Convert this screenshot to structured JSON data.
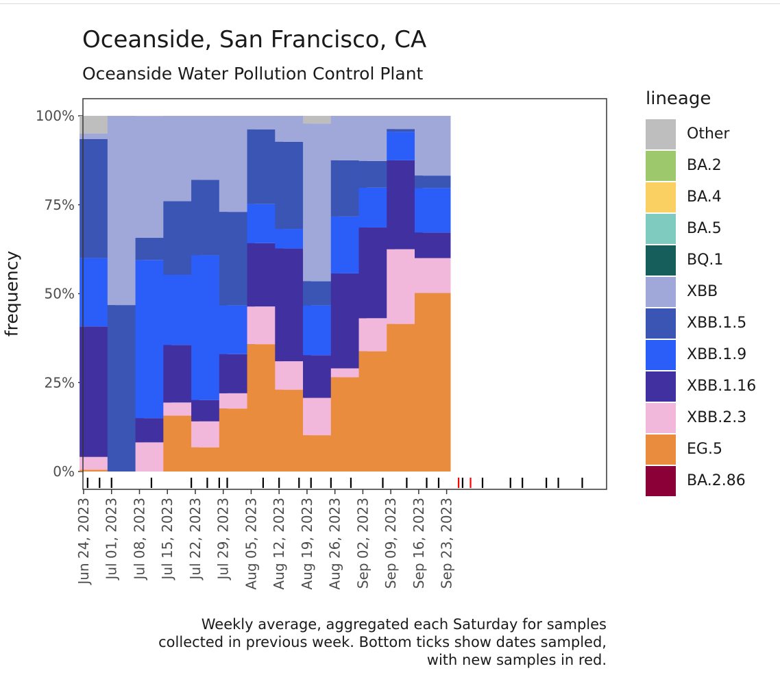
{
  "chart_data": {
    "type": "bar",
    "stacked": true,
    "title": "Oceanside, San Francisco, CA",
    "subtitle": "Oceanside Water Pollution Control Plant",
    "xlabel": "",
    "ylabel": "frequency",
    "ylim": [
      0,
      1
    ],
    "yticks": [
      "0%",
      "25%",
      "50%",
      "75%",
      "100%"
    ],
    "xticks": [
      "Jun 24, 2023",
      "Jul 01, 2023",
      "Jul 08, 2023",
      "Jul 15, 2023",
      "Jul 22, 2023",
      "Jul 29, 2023",
      "Aug 05, 2023",
      "Aug 12, 2023",
      "Aug 19, 2023",
      "Aug 26, 2023",
      "Sep 02, 2023",
      "Sep 09, 2023",
      "Sep 16, 2023",
      "Sep 23, 2023"
    ],
    "categories": [
      "Jul 01, 2023",
      "Jul 08, 2023",
      "Jul 15, 2023",
      "Jul 22, 2023",
      "Jul 29, 2023",
      "Aug 05, 2023",
      "Aug 12, 2023",
      "Aug 19, 2023",
      "Aug 26, 2023",
      "Sep 02, 2023",
      "Sep 09, 2023",
      "Sep 16, 2023",
      "Sep 23, 2023"
    ],
    "legend_title": "lineage",
    "legend_position": "right",
    "series": [
      {
        "name": "BA.2.86",
        "color": "#8B0037",
        "values": [
          0,
          0,
          0,
          0,
          0,
          0,
          0,
          0,
          0,
          0,
          0,
          0,
          0
        ]
      },
      {
        "name": "EG.5",
        "color": "#EA8C3D",
        "values": [
          0.005,
          0,
          0,
          0.157,
          0.068,
          0.177,
          0.358,
          0.23,
          0.102,
          0.265,
          0.338,
          0.415,
          0.502
        ]
      },
      {
        "name": "XBB.2.3",
        "color": "#F2B8DC",
        "values": [
          0.036,
          0,
          0.082,
          0.037,
          0.073,
          0.043,
          0.106,
          0.08,
          0.105,
          0.025,
          0.093,
          0.21,
          0.098
        ]
      },
      {
        "name": "XBB.1.16",
        "color": "#4030A0",
        "values": [
          0.367,
          0,
          0.068,
          0.162,
          0.06,
          0.11,
          0.178,
          0.317,
          0.12,
          0.267,
          0.255,
          0.25,
          0.072
        ]
      },
      {
        "name": "XBB.1.9",
        "color": "#2B5EF8",
        "values": [
          0.192,
          0,
          0.445,
          0.197,
          0.407,
          0.137,
          0.11,
          0.055,
          0.14,
          0.16,
          0.112,
          0.08,
          0.125
        ]
      },
      {
        "name": "XBB.1.5",
        "color": "#3B55B5",
        "values": [
          0.335,
          0.468,
          0.062,
          0.207,
          0.212,
          0.263,
          0.21,
          0.245,
          0.068,
          0.158,
          0.075,
          0.008,
          0.035
        ]
      },
      {
        "name": "XBB",
        "color": "#9FA8D8",
        "values": [
          0.015,
          0.532,
          0.342,
          0.24,
          0.18,
          0.27,
          0.038,
          0.073,
          0.443,
          0.125,
          0.127,
          0.037,
          0.168
        ]
      },
      {
        "name": "BQ.1",
        "color": "#155E5C",
        "values": [
          0,
          0,
          0,
          0,
          0,
          0,
          0,
          0,
          0,
          0,
          0,
          0,
          0
        ]
      },
      {
        "name": "BA.5",
        "color": "#7FCBBF",
        "values": [
          0,
          0,
          0,
          0,
          0,
          0,
          0,
          0,
          0,
          0,
          0,
          0,
          0
        ]
      },
      {
        "name": "BA.4",
        "color": "#FAD062",
        "values": [
          0,
          0,
          0,
          0,
          0,
          0,
          0,
          0,
          0,
          0,
          0,
          0,
          0
        ]
      },
      {
        "name": "BA.2",
        "color": "#9DC86C",
        "values": [
          0,
          0,
          0,
          0,
          0,
          0,
          0,
          0,
          0,
          0,
          0,
          0,
          0
        ]
      },
      {
        "name": "Other",
        "color": "#BEBEBE",
        "values": [
          0.05,
          0,
          0.001,
          0,
          0,
          0,
          0,
          0,
          0.022,
          0,
          0,
          0,
          0
        ]
      }
    ],
    "legend": [
      {
        "name": "Other",
        "color": "#BEBEBE"
      },
      {
        "name": "BA.2",
        "color": "#9DC86C"
      },
      {
        "name": "BA.4",
        "color": "#FAD062"
      },
      {
        "name": "BA.5",
        "color": "#7FCBBF"
      },
      {
        "name": "BQ.1",
        "color": "#155E5C"
      },
      {
        "name": "XBB",
        "color": "#9FA8D8"
      },
      {
        "name": "XBB.1.5",
        "color": "#3B55B5"
      },
      {
        "name": "XBB.1.9",
        "color": "#2B5EF8"
      },
      {
        "name": "XBB.1.16",
        "color": "#4030A0"
      },
      {
        "name": "XBB.2.3",
        "color": "#F2B8DC"
      },
      {
        "name": "EG.5",
        "color": "#EA8C3D"
      },
      {
        "name": "BA.2.86",
        "color": "#8B0037"
      }
    ],
    "sample_days": [
      1,
      4,
      7,
      17,
      27,
      31,
      34,
      36,
      45,
      49,
      54,
      57,
      62,
      67,
      75,
      81,
      86,
      89,
      95,
      100,
      107,
      110,
      116,
      119,
      125
    ],
    "new_sample_days": [
      94,
      97
    ],
    "sample_colors": {
      "old": "#000000",
      "new": "#FF0000"
    }
  },
  "caption": {
    "line1": "Weekly average, aggregated each Saturday for samples",
    "line2": "collected in previous week. Bottom ticks show dates sampled,",
    "line3": "with new samples in red."
  }
}
